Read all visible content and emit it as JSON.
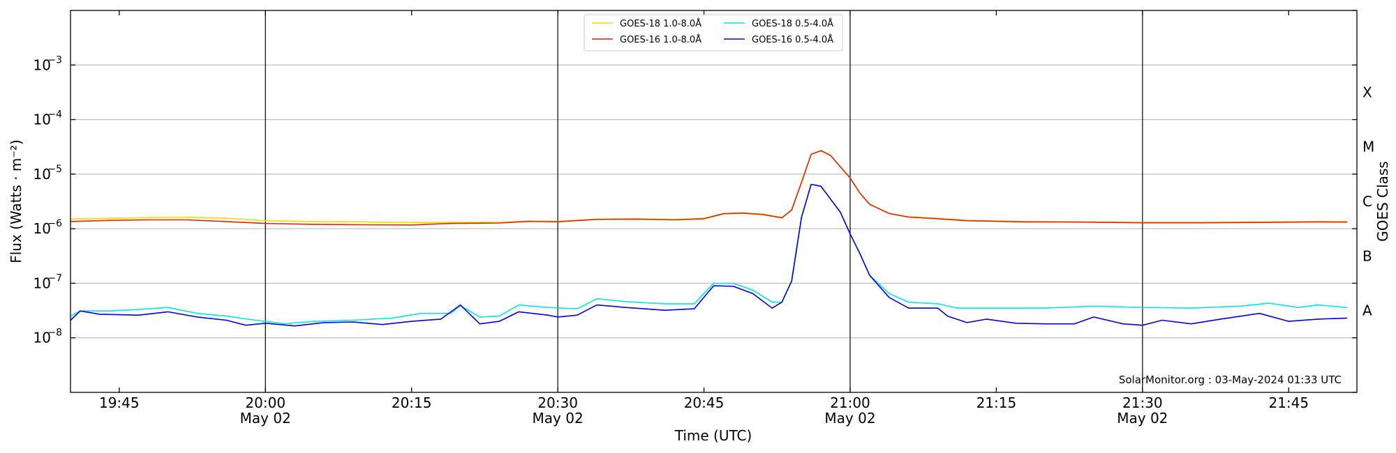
{
  "chart_data": {
    "type": "line",
    "xlabel": "Time (UTC)",
    "ylabel": "Flux (Watts · m⁻²)",
    "ylabel_right": "GOES Class",
    "yscale": "log",
    "ylim": [
      1e-09,
      0.01
    ],
    "y_ticks": [
      {
        "value": 1e-08,
        "base": "10",
        "exp": "−8"
      },
      {
        "value": 1e-07,
        "base": "10",
        "exp": "−7"
      },
      {
        "value": 1e-06,
        "base": "10",
        "exp": "−6"
      },
      {
        "value": 1e-05,
        "base": "10",
        "exp": "−5"
      },
      {
        "value": 0.0001,
        "base": "10",
        "exp": "−4"
      },
      {
        "value": 0.001,
        "base": "10",
        "exp": "−3"
      }
    ],
    "goes_classes": [
      {
        "label": "A",
        "value": 3.16e-08
      },
      {
        "label": "B",
        "value": 3.16e-07
      },
      {
        "label": "C",
        "value": 3.16e-06
      },
      {
        "label": "M",
        "value": 3.16e-05
      },
      {
        "label": "X",
        "value": 0.000316
      }
    ],
    "xlim": [
      "2024-05-02 19:40",
      "2024-05-02 21:52"
    ],
    "x_ticks": [
      {
        "time": "2024-05-02 19:45",
        "label": "19:45",
        "sub": ""
      },
      {
        "time": "2024-05-02 20:00",
        "label": "20:00",
        "sub": "May 02"
      },
      {
        "time": "2024-05-02 20:15",
        "label": "20:15",
        "sub": ""
      },
      {
        "time": "2024-05-02 20:30",
        "label": "20:30",
        "sub": "May 02"
      },
      {
        "time": "2024-05-02 20:45",
        "label": "20:45",
        "sub": ""
      },
      {
        "time": "2024-05-02 21:00",
        "label": "21:00",
        "sub": "May 02"
      },
      {
        "time": "2024-05-02 21:15",
        "label": "21:15",
        "sub": ""
      },
      {
        "time": "2024-05-02 21:30",
        "label": "21:30",
        "sub": "May 02"
      },
      {
        "time": "2024-05-02 21:45",
        "label": "21:45",
        "sub": ""
      }
    ],
    "vertical_lines": [
      "2024-05-02 20:00",
      "2024-05-02 20:30",
      "2024-05-02 21:00",
      "2024-05-02 21:30"
    ],
    "grid": "horizontal",
    "legend_position": "top-center",
    "annotation": "SolarMonitor.org : 03-May-2024 01:33 UTC",
    "series": [
      {
        "name": "GOES-18 1.0-8.0Å",
        "color": "#ffd700",
        "points": [
          [
            "2024-05-02 19:40",
            1.5e-06
          ],
          [
            "2024-05-02 19:44",
            1.55e-06
          ],
          [
            "2024-05-02 19:48",
            1.6e-06
          ],
          [
            "2024-05-02 19:52",
            1.62e-06
          ],
          [
            "2024-05-02 19:56",
            1.55e-06
          ],
          [
            "2024-05-02 20:00",
            1.4e-06
          ],
          [
            "2024-05-02 20:05",
            1.35e-06
          ],
          [
            "2024-05-02 20:10",
            1.33e-06
          ],
          [
            "2024-05-02 20:15",
            1.3e-06
          ],
          [
            "2024-05-02 20:19",
            1.3e-06
          ],
          [
            "2024-05-02 20:24",
            1.3e-06
          ],
          [
            "2024-05-02 20:27",
            1.38e-06
          ],
          [
            "2024-05-02 20:30",
            1.36e-06
          ],
          [
            "2024-05-02 20:34",
            1.5e-06
          ],
          [
            "2024-05-02 20:38",
            1.52e-06
          ],
          [
            "2024-05-02 20:42",
            1.48e-06
          ],
          [
            "2024-05-02 20:45",
            1.55e-06
          ],
          [
            "2024-05-02 20:47",
            1.9e-06
          ],
          [
            "2024-05-02 20:49",
            1.95e-06
          ],
          [
            "2024-05-02 20:51",
            1.85e-06
          ],
          [
            "2024-05-02 20:53",
            1.6e-06
          ],
          [
            "2024-05-02 20:54",
            2.2e-06
          ],
          [
            "2024-05-02 20:55",
            7e-06
          ],
          [
            "2024-05-02 20:56",
            2.3e-05
          ],
          [
            "2024-05-02 20:57",
            2.7e-05
          ],
          [
            "2024-05-02 20:58",
            2.2e-05
          ],
          [
            "2024-05-02 21:00",
            8.5e-06
          ],
          [
            "2024-05-02 21:01",
            4.5e-06
          ],
          [
            "2024-05-02 21:02",
            2.8e-06
          ],
          [
            "2024-05-02 21:04",
            1.9e-06
          ],
          [
            "2024-05-02 21:06",
            1.65e-06
          ],
          [
            "2024-05-02 21:09",
            1.55e-06
          ],
          [
            "2024-05-02 21:12",
            1.42e-06
          ],
          [
            "2024-05-02 21:18",
            1.35e-06
          ],
          [
            "2024-05-02 21:24",
            1.33e-06
          ],
          [
            "2024-05-02 21:30",
            1.3e-06
          ],
          [
            "2024-05-02 21:36",
            1.3e-06
          ],
          [
            "2024-05-02 21:42",
            1.33e-06
          ],
          [
            "2024-05-02 21:48",
            1.35e-06
          ],
          [
            "2024-05-02 21:51",
            1.35e-06
          ]
        ]
      },
      {
        "name": "GOES-16 1.0-8.0Å",
        "color": "#e32400",
        "points": [
          [
            "2024-05-02 19:40",
            1.35e-06
          ],
          [
            "2024-05-02 19:44",
            1.42e-06
          ],
          [
            "2024-05-02 19:48",
            1.45e-06
          ],
          [
            "2024-05-02 19:52",
            1.45e-06
          ],
          [
            "2024-05-02 19:56",
            1.35e-06
          ],
          [
            "2024-05-02 20:00",
            1.25e-06
          ],
          [
            "2024-05-02 20:05",
            1.2e-06
          ],
          [
            "2024-05-02 20:10",
            1.18e-06
          ],
          [
            "2024-05-02 20:15",
            1.17e-06
          ],
          [
            "2024-05-02 20:19",
            1.25e-06
          ],
          [
            "2024-05-02 20:24",
            1.27e-06
          ],
          [
            "2024-05-02 20:27",
            1.36e-06
          ],
          [
            "2024-05-02 20:30",
            1.34e-06
          ],
          [
            "2024-05-02 20:34",
            1.48e-06
          ],
          [
            "2024-05-02 20:38",
            1.5e-06
          ],
          [
            "2024-05-02 20:42",
            1.45e-06
          ],
          [
            "2024-05-02 20:45",
            1.52e-06
          ],
          [
            "2024-05-02 20:47",
            1.88e-06
          ],
          [
            "2024-05-02 20:49",
            1.93e-06
          ],
          [
            "2024-05-02 20:51",
            1.82e-06
          ],
          [
            "2024-05-02 20:53",
            1.58e-06
          ],
          [
            "2024-05-02 20:54",
            2.2e-06
          ],
          [
            "2024-05-02 20:55",
            7e-06
          ],
          [
            "2024-05-02 20:56",
            2.3e-05
          ],
          [
            "2024-05-02 20:57",
            2.7e-05
          ],
          [
            "2024-05-02 20:58",
            2.2e-05
          ],
          [
            "2024-05-02 21:00",
            8.5e-06
          ],
          [
            "2024-05-02 21:01",
            4.5e-06
          ],
          [
            "2024-05-02 21:02",
            2.8e-06
          ],
          [
            "2024-05-02 21:04",
            1.9e-06
          ],
          [
            "2024-05-02 21:06",
            1.63e-06
          ],
          [
            "2024-05-02 21:09",
            1.52e-06
          ],
          [
            "2024-05-02 21:12",
            1.4e-06
          ],
          [
            "2024-05-02 21:18",
            1.33e-06
          ],
          [
            "2024-05-02 21:24",
            1.32e-06
          ],
          [
            "2024-05-02 21:30",
            1.28e-06
          ],
          [
            "2024-05-02 21:36",
            1.28e-06
          ],
          [
            "2024-05-02 21:42",
            1.3e-06
          ],
          [
            "2024-05-02 21:48",
            1.33e-06
          ],
          [
            "2024-05-02 21:51",
            1.32e-06
          ]
        ]
      },
      {
        "name": "GOES-18 0.5-4.0Å",
        "color": "#00e5ee",
        "points": [
          [
            "2024-05-02 19:40",
            2.5e-08
          ],
          [
            "2024-05-02 19:41",
            3.1e-08
          ],
          [
            "2024-05-02 19:44",
            3.1e-08
          ],
          [
            "2024-05-02 19:47",
            3.3e-08
          ],
          [
            "2024-05-02 19:50",
            3.6e-08
          ],
          [
            "2024-05-02 19:53",
            2.8e-08
          ],
          [
            "2024-05-02 19:56",
            2.5e-08
          ],
          [
            "2024-05-02 19:59",
            2.1e-08
          ],
          [
            "2024-05-02 20:02",
            1.8e-08
          ],
          [
            "2024-05-02 20:05",
            2e-08
          ],
          [
            "2024-05-02 20:09",
            2.1e-08
          ],
          [
            "2024-05-02 20:13",
            2.3e-08
          ],
          [
            "2024-05-02 20:16",
            2.8e-08
          ],
          [
            "2024-05-02 20:19",
            2.8e-08
          ],
          [
            "2024-05-02 20:20",
            3.9e-08
          ],
          [
            "2024-05-02 20:22",
            2.4e-08
          ],
          [
            "2024-05-02 20:24",
            2.5e-08
          ],
          [
            "2024-05-02 20:26",
            4e-08
          ],
          [
            "2024-05-02 20:29",
            3.6e-08
          ],
          [
            "2024-05-02 20:32",
            3.4e-08
          ],
          [
            "2024-05-02 20:34",
            5.2e-08
          ],
          [
            "2024-05-02 20:37",
            4.6e-08
          ],
          [
            "2024-05-02 20:41",
            4.2e-08
          ],
          [
            "2024-05-02 20:44",
            4.2e-08
          ],
          [
            "2024-05-02 20:46",
            1e-07
          ],
          [
            "2024-05-02 20:48",
            1e-07
          ],
          [
            "2024-05-02 20:50",
            7.5e-08
          ],
          [
            "2024-05-02 20:52",
            4.5e-08
          ],
          [
            "2024-05-02 20:53",
            4.5e-08
          ],
          [
            "2024-05-02 20:54",
            1.1e-07
          ],
          [
            "2024-05-02 20:55",
            1.6e-06
          ],
          [
            "2024-05-02 20:56",
            6.5e-06
          ],
          [
            "2024-05-02 20:57",
            6e-06
          ],
          [
            "2024-05-02 20:59",
            2e-06
          ],
          [
            "2024-05-02 21:00",
            8e-07
          ],
          [
            "2024-05-02 21:01",
            3.5e-07
          ],
          [
            "2024-05-02 21:02",
            1.4e-07
          ],
          [
            "2024-05-02 21:04",
            6.5e-08
          ],
          [
            "2024-05-02 21:06",
            4.5e-08
          ],
          [
            "2024-05-02 21:09",
            4.2e-08
          ],
          [
            "2024-05-02 21:11",
            3.5e-08
          ],
          [
            "2024-05-02 21:15",
            3.5e-08
          ],
          [
            "2024-05-02 21:20",
            3.5e-08
          ],
          [
            "2024-05-02 21:25",
            3.8e-08
          ],
          [
            "2024-05-02 21:30",
            3.6e-08
          ],
          [
            "2024-05-02 21:35",
            3.5e-08
          ],
          [
            "2024-05-02 21:40",
            3.8e-08
          ],
          [
            "2024-05-02 21:43",
            4.3e-08
          ],
          [
            "2024-05-02 21:46",
            3.6e-08
          ],
          [
            "2024-05-02 21:48",
            4e-08
          ],
          [
            "2024-05-02 21:51",
            3.6e-08
          ]
        ]
      },
      {
        "name": "GOES-16 0.5-4.0Å",
        "color": "#0000e0",
        "points": [
          [
            "2024-05-02 19:40",
            2.1e-08
          ],
          [
            "2024-05-02 19:41",
            3.1e-08
          ],
          [
            "2024-05-02 19:43",
            2.7e-08
          ],
          [
            "2024-05-02 19:47",
            2.6e-08
          ],
          [
            "2024-05-02 19:50",
            3e-08
          ],
          [
            "2024-05-02 19:53",
            2.4e-08
          ],
          [
            "2024-05-02 19:56",
            2.1e-08
          ],
          [
            "2024-05-02 19:58",
            1.7e-08
          ],
          [
            "2024-05-02 20:00",
            1.85e-08
          ],
          [
            "2024-05-02 20:03",
            1.65e-08
          ],
          [
            "2024-05-02 20:06",
            1.9e-08
          ],
          [
            "2024-05-02 20:09",
            1.95e-08
          ],
          [
            "2024-05-02 20:12",
            1.75e-08
          ],
          [
            "2024-05-02 20:15",
            2e-08
          ],
          [
            "2024-05-02 20:18",
            2.2e-08
          ],
          [
            "2024-05-02 20:20",
            4e-08
          ],
          [
            "2024-05-02 20:22",
            1.8e-08
          ],
          [
            "2024-05-02 20:24",
            2e-08
          ],
          [
            "2024-05-02 20:26",
            3e-08
          ],
          [
            "2024-05-02 20:29",
            2.6e-08
          ],
          [
            "2024-05-02 20:30",
            2.4e-08
          ],
          [
            "2024-05-02 20:32",
            2.6e-08
          ],
          [
            "2024-05-02 20:34",
            4e-08
          ],
          [
            "2024-05-02 20:37",
            3.6e-08
          ],
          [
            "2024-05-02 20:41",
            3.2e-08
          ],
          [
            "2024-05-02 20:44",
            3.4e-08
          ],
          [
            "2024-05-02 20:46",
            9e-08
          ],
          [
            "2024-05-02 20:48",
            8.8e-08
          ],
          [
            "2024-05-02 20:50",
            6.5e-08
          ],
          [
            "2024-05-02 20:52",
            3.5e-08
          ],
          [
            "2024-05-02 20:53",
            4.5e-08
          ],
          [
            "2024-05-02 20:54",
            1.1e-07
          ],
          [
            "2024-05-02 20:55",
            1.6e-06
          ],
          [
            "2024-05-02 20:56",
            6.5e-06
          ],
          [
            "2024-05-02 20:57",
            6e-06
          ],
          [
            "2024-05-02 20:59",
            2e-06
          ],
          [
            "2024-05-02 21:00",
            8e-07
          ],
          [
            "2024-05-02 21:01",
            3.5e-07
          ],
          [
            "2024-05-02 21:02",
            1.4e-07
          ],
          [
            "2024-05-02 21:04",
            5.5e-08
          ],
          [
            "2024-05-02 21:06",
            3.5e-08
          ],
          [
            "2024-05-02 21:09",
            3.5e-08
          ],
          [
            "2024-05-02 21:10",
            2.5e-08
          ],
          [
            "2024-05-02 21:12",
            1.9e-08
          ],
          [
            "2024-05-02 21:14",
            2.2e-08
          ],
          [
            "2024-05-02 21:17",
            1.85e-08
          ],
          [
            "2024-05-02 21:20",
            1.8e-08
          ],
          [
            "2024-05-02 21:23",
            1.8e-08
          ],
          [
            "2024-05-02 21:25",
            2.4e-08
          ],
          [
            "2024-05-02 21:28",
            1.8e-08
          ],
          [
            "2024-05-02 21:30",
            1.7e-08
          ],
          [
            "2024-05-02 21:32",
            2.1e-08
          ],
          [
            "2024-05-02 21:35",
            1.8e-08
          ],
          [
            "2024-05-02 21:38",
            2.2e-08
          ],
          [
            "2024-05-02 21:42",
            2.8e-08
          ],
          [
            "2024-05-02 21:45",
            2e-08
          ],
          [
            "2024-05-02 21:48",
            2.2e-08
          ],
          [
            "2024-05-02 21:51",
            2.3e-08
          ]
        ]
      }
    ]
  }
}
